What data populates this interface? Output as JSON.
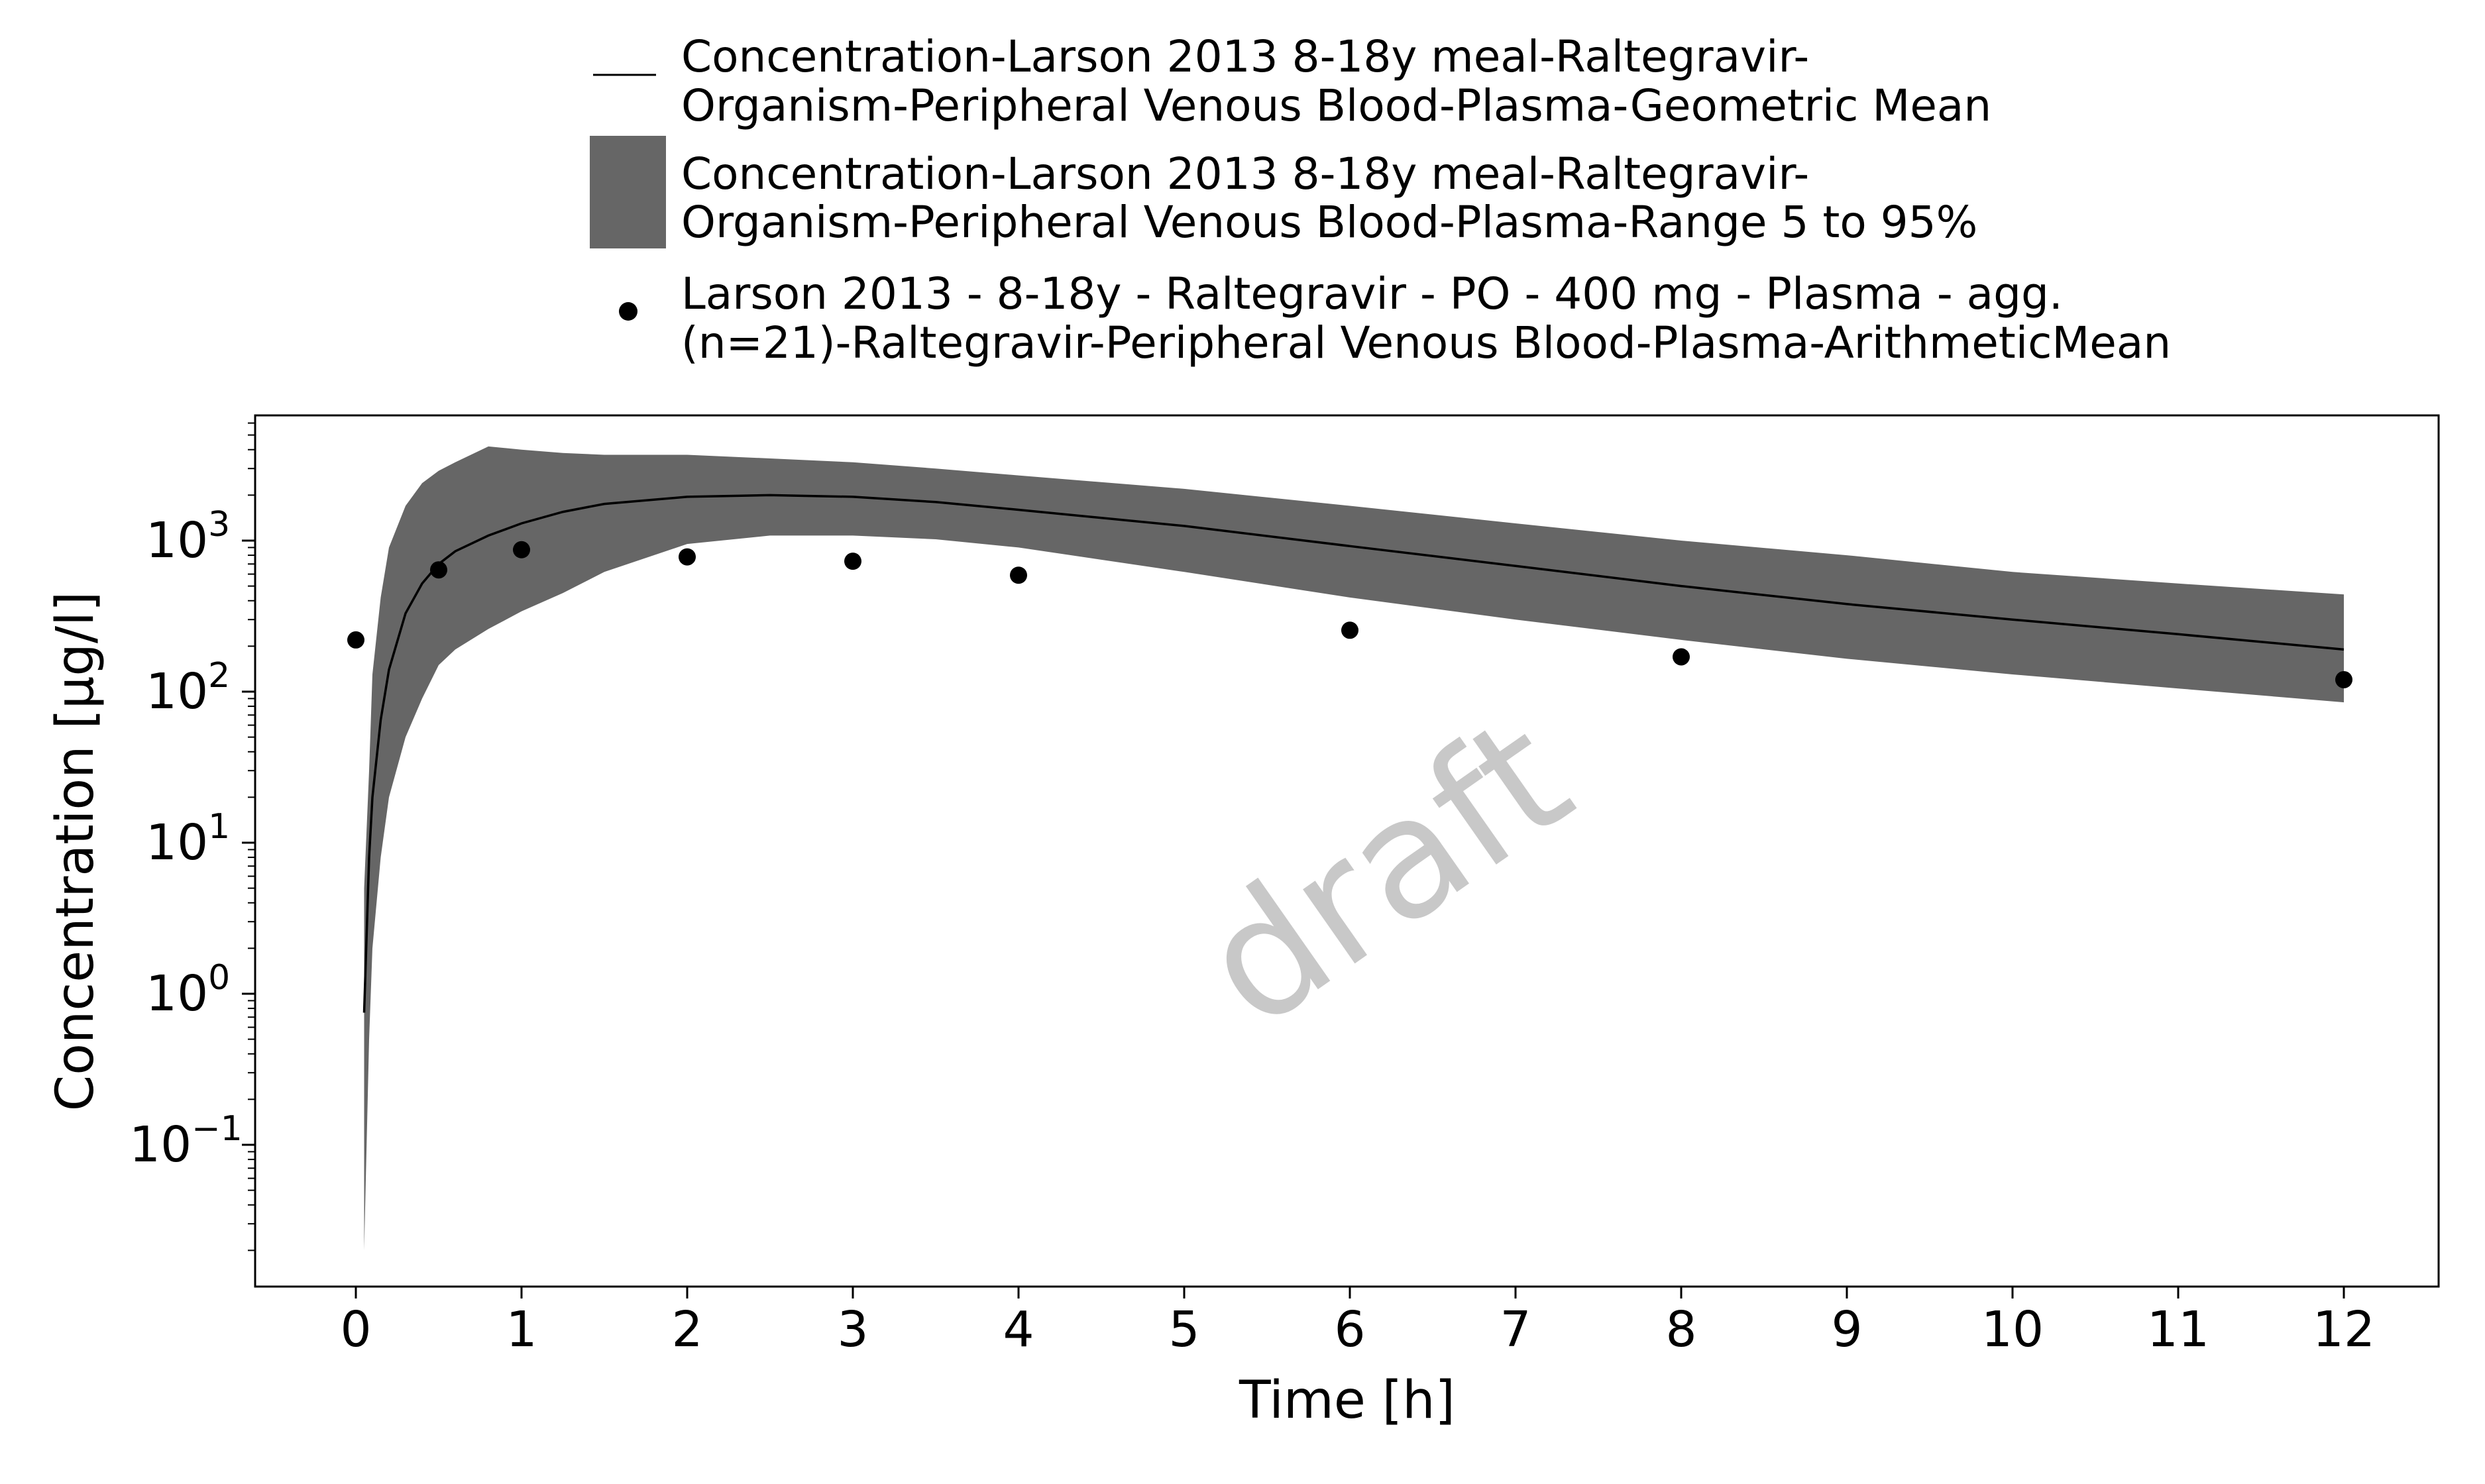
{
  "chart_data": {
    "type": "line",
    "xlabel": "Time [h]",
    "ylabel": "Concentration [µg/l]",
    "watermark": "draft",
    "y_scale": "log",
    "xlim": [
      -0.6,
      12.6
    ],
    "ylim": [
      0.01,
      8000
    ],
    "x_ticks": [
      0,
      1,
      2,
      3,
      4,
      5,
      6,
      7,
      8,
      9,
      10,
      11,
      12
    ],
    "y_ticks": [
      {
        "value": 0.1,
        "base": "10",
        "exp": "−1"
      },
      {
        "value": 1,
        "base": "10",
        "exp": "0"
      },
      {
        "value": 10,
        "base": "10",
        "exp": "1"
      },
      {
        "value": 100,
        "base": "10",
        "exp": "2"
      },
      {
        "value": 1000,
        "base": "10",
        "exp": "3"
      }
    ],
    "grid": false,
    "legend_position": "top",
    "colors": {
      "line": "#000000",
      "band": "#666666",
      "points": "#000000",
      "watermark": "#c8c8c8"
    },
    "series": [
      {
        "name": "Concentration-Larson 2013 8-18y meal-Raltegravir-Organism-Peripheral Venous Blood-Plasma-Geometric Mean",
        "legend_lines": [
          "Concentration-Larson 2013 8-18y meal-Raltegravir-",
          "Organism-Peripheral Venous Blood-Plasma-Geometric Mean"
        ],
        "kind": "line",
        "x": [
          0.05,
          0.08,
          0.1,
          0.15,
          0.2,
          0.3,
          0.4,
          0.5,
          0.6,
          0.8,
          1.0,
          1.25,
          1.5,
          2.0,
          2.5,
          3.0,
          3.5,
          4.0,
          5.0,
          6.0,
          7.0,
          8.0,
          9.0,
          10.0,
          11.0,
          12.0
        ],
        "y": [
          0.75,
          8,
          20,
          65,
          140,
          330,
          520,
          700,
          850,
          1080,
          1300,
          1550,
          1750,
          1950,
          2000,
          1950,
          1800,
          1600,
          1250,
          920,
          680,
          500,
          380,
          300,
          240,
          190
        ]
      },
      {
        "name": "Concentration-Larson 2013 8-18y meal-Raltegravir-Organism-Peripheral Venous Blood-Plasma-Range 5 to 95%",
        "legend_lines": [
          "Concentration-Larson 2013 8-18y meal-Raltegravir-",
          "Organism-Peripheral Venous Blood-Plasma-Range 5 to 95%"
        ],
        "kind": "band",
        "x": [
          0.05,
          0.08,
          0.1,
          0.15,
          0.2,
          0.3,
          0.4,
          0.5,
          0.6,
          0.8,
          1.0,
          1.25,
          1.5,
          2.0,
          2.5,
          3.0,
          3.5,
          4.0,
          5.0,
          6.0,
          7.0,
          8.0,
          9.0,
          10.0,
          11.0,
          12.0
        ],
        "upper": [
          5,
          30,
          130,
          420,
          900,
          1700,
          2400,
          2900,
          3300,
          4200,
          4000,
          3800,
          3700,
          3700,
          3500,
          3300,
          3000,
          2700,
          2200,
          1700,
          1300,
          1000,
          800,
          620,
          520,
          440
        ],
        "lower": [
          0.02,
          0.5,
          2,
          8,
          20,
          50,
          90,
          150,
          190,
          260,
          340,
          450,
          620,
          950,
          1080,
          1080,
          1020,
          900,
          620,
          420,
          300,
          220,
          165,
          130,
          105,
          85
        ]
      },
      {
        "name": "Larson 2013 - 8-18y - Raltegravir - PO - 400 mg - Plasma - agg. (n=21)-Raltegravir-Peripheral Venous Blood-Plasma-ArithmeticMean",
        "legend_lines": [
          "Larson 2013 - 8-18y - Raltegravir - PO - 400 mg - Plasma - agg.",
          "(n=21)-Raltegravir-Peripheral Venous Blood-Plasma-ArithmeticMean"
        ],
        "kind": "scatter",
        "x": [
          0,
          0.5,
          1,
          2,
          3,
          4,
          6,
          8,
          12
        ],
        "y": [
          220,
          640,
          870,
          780,
          730,
          590,
          255,
          170,
          120
        ]
      }
    ]
  }
}
